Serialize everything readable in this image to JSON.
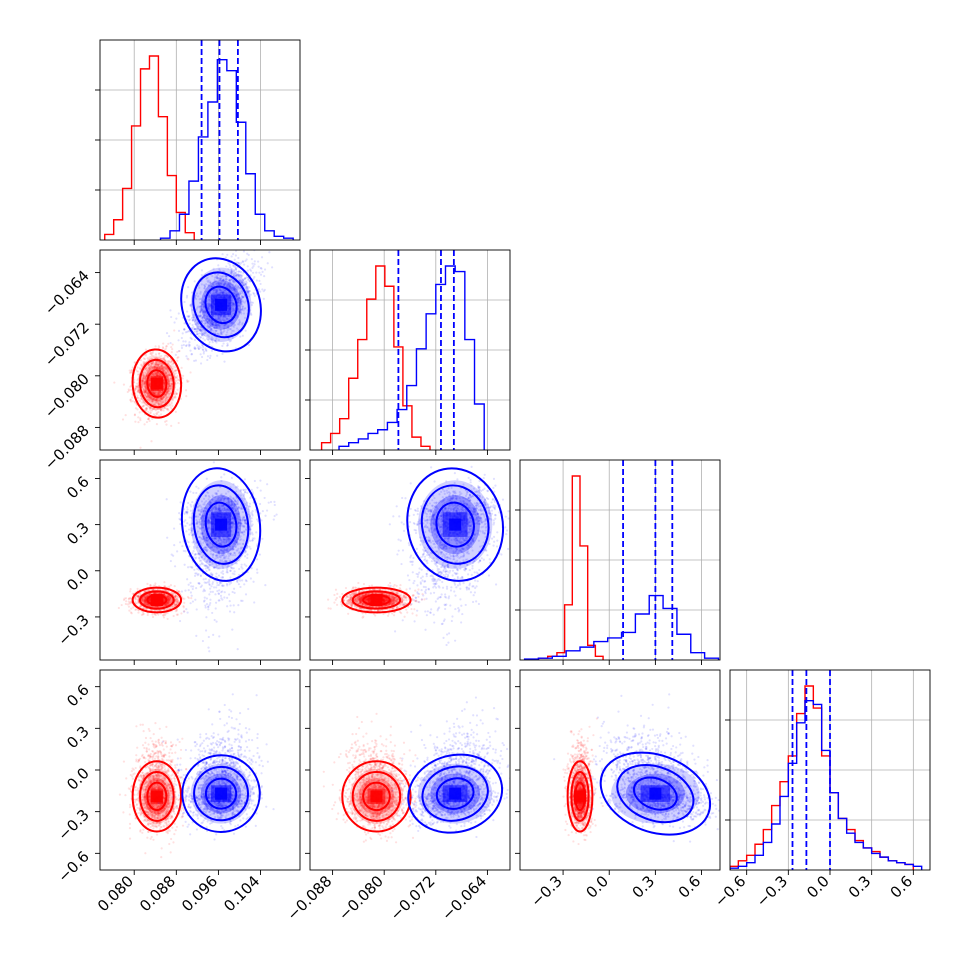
{
  "chart_data": {
    "type": "corner",
    "n_params": 4,
    "grid": true,
    "colors": {
      "A": "#ff0000",
      "B": "#0000ff"
    },
    "axes": [
      {
        "range": [
          0.0735,
          0.1115
        ],
        "ticks": [
          0.08,
          0.088,
          0.096,
          0.104
        ],
        "tick_labels": [
          "0.080",
          "0.088",
          "0.096",
          "0.104"
        ]
      },
      {
        "range": [
          -0.0915,
          -0.0605
        ],
        "ticks": [
          -0.088,
          -0.08,
          -0.072,
          -0.064
        ],
        "tick_labels": [
          "−0.088",
          "−0.080",
          "−0.072",
          "−0.064"
        ]
      },
      {
        "range": [
          -0.58,
          0.72
        ],
        "ticks": [
          -0.3,
          0.0,
          0.3,
          0.6
        ],
        "tick_labels": [
          "−0.3",
          "0.0",
          "0.3",
          "0.6"
        ]
      },
      {
        "range": [
          -0.72,
          0.72
        ],
        "ticks": [
          -0.6,
          -0.3,
          0.0,
          0.3,
          0.6
        ],
        "tick_labels": [
          "−0.6",
          "−0.3",
          "0.0",
          "0.3",
          "0.6"
        ]
      }
    ],
    "series": [
      {
        "name": "",
        "color": "#ff0000",
        "means": [
          0.0843,
          -0.0812,
          -0.19,
          -0.19
        ],
        "sigmas": [
          0.002,
          0.0023,
          0.035,
          0.11
        ],
        "quantiles": [],
        "hist1d": [
          {
            "edges": [
              0.0744,
              0.0761,
              0.0778,
              0.0795,
              0.0812,
              0.0829,
              0.0846,
              0.0863,
              0.088,
              0.0897,
              0.0914
            ],
            "counts": [
              0.03,
              0.11,
              0.28,
              0.62,
              0.93,
              1.0,
              0.67,
              0.35,
              0.15,
              0.04
            ]
          },
          {
            "edges": [
              -0.0897,
              -0.0883,
              -0.0869,
              -0.0855,
              -0.0841,
              -0.0827,
              -0.0813,
              -0.0799,
              -0.0785,
              -0.0771,
              -0.0757,
              -0.0743,
              -0.0729
            ],
            "counts": [
              0.04,
              0.09,
              0.17,
              0.39,
              0.6,
              0.82,
              1.0,
              0.89,
              0.56,
              0.24,
              0.07,
              0.02
            ]
          },
          {
            "edges": [
              -0.46,
              -0.4,
              -0.34,
              -0.29,
              -0.24,
              -0.19,
              -0.14,
              -0.09,
              -0.04
            ],
            "counts": [
              0.01,
              0.02,
              0.04,
              0.3,
              1.0,
              0.62,
              0.08,
              0.02
            ]
          },
          {
            "edges": [
              -0.72,
              -0.66,
              -0.6,
              -0.54,
              -0.48,
              -0.42,
              -0.36,
              -0.3,
              -0.24,
              -0.18,
              -0.12,
              -0.06,
              0.0,
              0.06,
              0.12,
              0.18,
              0.24,
              0.3,
              0.36,
              0.42,
              0.48,
              0.54,
              0.6
            ],
            "counts": [
              0.02,
              0.05,
              0.08,
              0.14,
              0.22,
              0.35,
              0.48,
              0.62,
              0.85,
              1.0,
              0.88,
              0.62,
              0.42,
              0.28,
              0.22,
              0.16,
              0.12,
              0.1,
              0.07,
              0.05,
              0.04,
              0.03
            ]
          }
        ]
      },
      {
        "name": "",
        "color": "#0000ff",
        "means": [
          0.0965,
          -0.069,
          0.3,
          -0.17
        ],
        "sigmas": [
          0.0032,
          0.0032,
          0.16,
          0.12
        ],
        "quantiles": [
          [
            0.0928,
            0.0962,
            0.0997
          ],
          [
            -0.0778,
            -0.0712,
            -0.0692
          ],
          [
            0.09,
            0.3,
            0.41
          ],
          [
            -0.27,
            -0.17,
            0.0
          ]
        ],
        "hist1d": [
          {
            "edges": [
              0.085,
              0.0868,
              0.0886,
              0.0904,
              0.0922,
              0.094,
              0.0958,
              0.0976,
              0.0994,
              0.1012,
              0.103,
              0.1048,
              0.1066,
              0.1084,
              0.1102
            ],
            "counts": [
              0.01,
              0.05,
              0.14,
              0.32,
              0.56,
              0.75,
              0.98,
              0.92,
              0.64,
              0.36,
              0.14,
              0.05,
              0.02,
              0.01
            ]
          },
          {
            "edges": [
              -0.087,
              -0.0855,
              -0.084,
              -0.0825,
              -0.081,
              -0.0795,
              -0.078,
              -0.0765,
              -0.075,
              -0.0735,
              -0.072,
              -0.0705,
              -0.069,
              -0.0675,
              -0.066,
              -0.0645
            ],
            "counts": [
              0.02,
              0.04,
              0.06,
              0.09,
              0.11,
              0.15,
              0.22,
              0.35,
              0.55,
              0.74,
              0.9,
              1.0,
              0.97,
              0.6,
              0.25
            ]
          },
          {
            "edges": [
              -0.55,
              -0.46,
              -0.37,
              -0.28,
              -0.19,
              -0.1,
              -0.01,
              0.08,
              0.17,
              0.26,
              0.35,
              0.44,
              0.53,
              0.62,
              0.71
            ],
            "counts": [
              0.005,
              0.01,
              0.02,
              0.05,
              0.07,
              0.1,
              0.12,
              0.15,
              0.25,
              0.35,
              0.28,
              0.14,
              0.04,
              0.01
            ]
          },
          {
            "edges": [
              -0.72,
              -0.66,
              -0.6,
              -0.54,
              -0.48,
              -0.42,
              -0.36,
              -0.3,
              -0.24,
              -0.18,
              -0.12,
              -0.06,
              0.0,
              0.06,
              0.12,
              0.18,
              0.24,
              0.3,
              0.36,
              0.42,
              0.48,
              0.54,
              0.6,
              0.66
            ],
            "counts": [
              0.01,
              0.02,
              0.04,
              0.08,
              0.15,
              0.25,
              0.4,
              0.58,
              0.8,
              0.92,
              0.9,
              0.65,
              0.42,
              0.28,
              0.2,
              0.15,
              0.12,
              0.09,
              0.07,
              0.05,
              0.04,
              0.03,
              0.02
            ]
          }
        ]
      }
    ]
  }
}
